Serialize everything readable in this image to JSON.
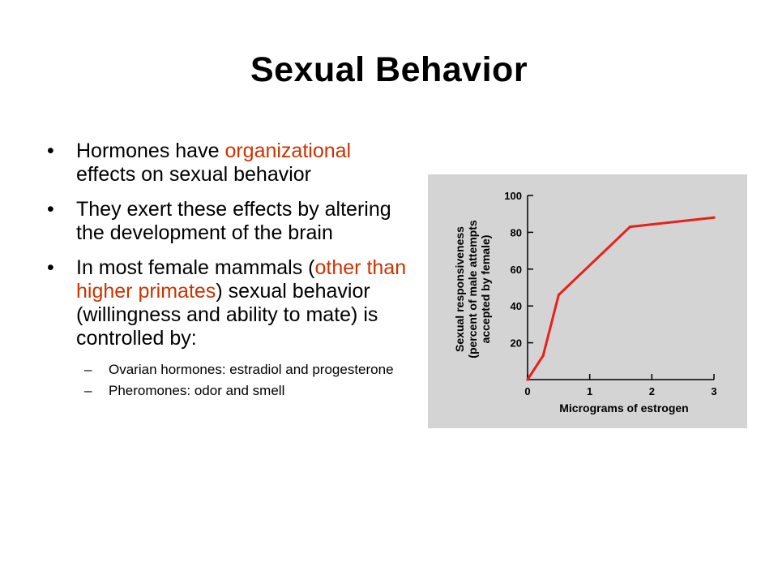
{
  "slide": {
    "title": "Sexual  Behavior",
    "bullets": [
      {
        "parts": [
          "Hormones have ",
          "organizational",
          " effects on sexual behavior"
        ]
      },
      {
        "parts": [
          "They exert these effects by altering the development  of the brain"
        ]
      },
      {
        "parts": [
          "In most female mammals (",
          "other than higher primates",
          ") sexual behavior (willingness and ability to mate) is controlled by:"
        ]
      }
    ],
    "subbullets": [
      "Ovarian hormones:  estradiol and progesterone",
      "Pheromones:  odor and smell"
    ],
    "highlight_color": "#cc3300"
  },
  "chart_data": {
    "type": "line",
    "xlabel": "Micrograms of estrogen",
    "ylabel": [
      "Sexual responsiveness",
      "(percent of male attempts",
      "accepted by female)"
    ],
    "x_ticks": [
      0,
      1,
      2,
      3
    ],
    "y_ticks": [
      20,
      40,
      60,
      80,
      100
    ],
    "xlim": [
      0,
      3
    ],
    "ylim": [
      0,
      100
    ],
    "series": [
      {
        "color": "#e8201c",
        "x": [
          0,
          0.25,
          0.5,
          1.65,
          3.0
        ],
        "y": [
          0,
          13,
          46,
          83,
          88
        ]
      }
    ],
    "background": "#d4d4d4",
    "grid": false
  }
}
